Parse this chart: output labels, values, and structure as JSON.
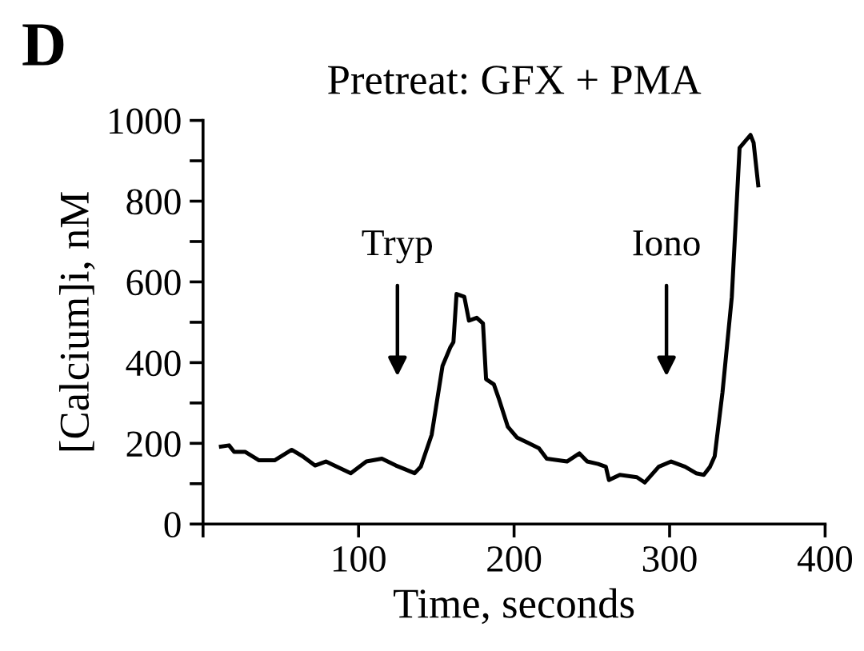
{
  "chart_data": {
    "type": "line",
    "title": "Pretreat: GFX + PMA",
    "xlabel": "Time, seconds",
    "ylabel": "[Calcium]i, nM",
    "annotations": [
      "D",
      "Tryp",
      "Iono"
    ],
    "x": [
      11.5,
      16.7,
      20,
      27,
      36,
      46,
      57,
      64,
      72,
      79,
      86,
      95,
      105,
      115,
      124,
      136,
      140,
      147,
      154,
      159,
      161,
      163,
      168,
      171,
      176,
      180,
      182,
      187,
      190,
      196,
      202,
      209,
      216,
      221,
      234,
      242,
      247,
      254,
      259,
      261,
      268,
      279,
      284,
      293,
      301,
      310,
      317,
      322,
      326,
      329,
      334,
      340,
      345,
      352,
      354,
      357
    ],
    "series": [
      {
        "color": "#000000",
        "values": [
          192,
          195,
          179,
          179,
          158,
          158,
          184,
          168,
          145,
          155,
          142,
          126,
          155,
          162,
          145,
          126,
          142,
          221,
          392,
          438,
          451,
          570,
          563,
          504,
          511,
          497,
          359,
          346,
          313,
          241,
          214,
          201,
          188,
          162,
          155,
          175,
          155,
          149,
          142,
          109,
          122,
          116,
          103,
          142,
          155,
          142,
          126,
          122,
          142,
          168,
          326,
          563,
          932,
          964,
          945,
          839
        ]
      }
    ],
    "xlim": [
      0,
      400
    ],
    "ylim": [
      0,
      1000
    ],
    "xticks": [
      {
        "value": 0,
        "label": null
      },
      100,
      200,
      300,
      400
    ],
    "yticks": [
      0,
      {
        "value": 100,
        "label": null
      },
      200,
      {
        "value": 300,
        "label": null
      },
      400,
      {
        "value": 500,
        "label": null
      },
      600,
      {
        "value": 700,
        "label": null
      },
      800,
      {
        "value": 900,
        "label": null
      },
      1000
    ],
    "grid": false,
    "legend": false,
    "marker": "none",
    "line_style": "solid"
  }
}
